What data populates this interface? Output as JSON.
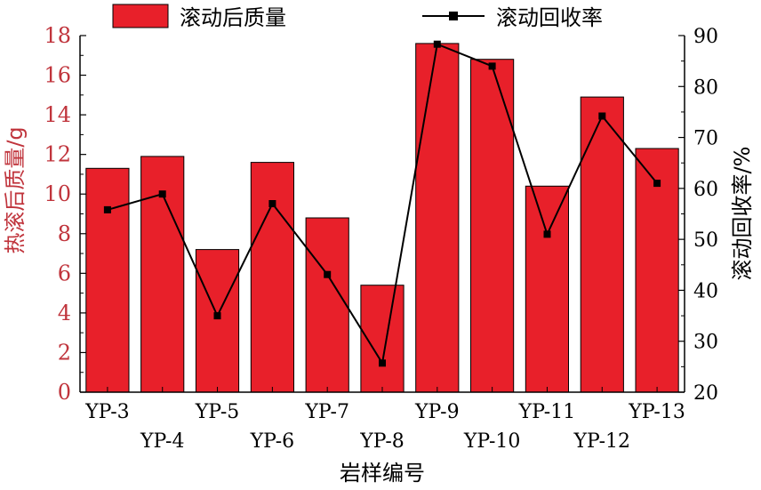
{
  "chart_data": {
    "type": "bar",
    "categories": [
      "YP-3",
      "YP-4",
      "YP-5",
      "YP-6",
      "YP-7",
      "YP-8",
      "YP-9",
      "YP-10",
      "YP-11",
      "YP-12",
      "YP-13"
    ],
    "series": [
      {
        "name": "滚动后质量",
        "type": "bar",
        "axis": "left",
        "color": "#e8202a",
        "values": [
          11.3,
          11.9,
          7.2,
          11.6,
          8.8,
          5.4,
          17.6,
          16.8,
          10.4,
          14.9,
          12.3
        ]
      },
      {
        "name": "滚动回收率",
        "type": "line",
        "axis": "right",
        "color": "#000000",
        "values": [
          55.8,
          58.9,
          35.0,
          57.0,
          43.1,
          25.7,
          88.3,
          84.0,
          51.0,
          74.2,
          61.0
        ]
      }
    ],
    "ylabel_left": "热滚后质量/g",
    "ylabel_right": "滚动回收率/%",
    "xlabel": "岩样编号",
    "ylim_left": [
      0,
      18
    ],
    "ylim_right": [
      20,
      90
    ],
    "yticks_left": [
      "0",
      "2",
      "4",
      "6",
      "8",
      "10",
      "12",
      "14",
      "16",
      "18"
    ],
    "yticks_right": [
      "20",
      "30",
      "40",
      "50",
      "60",
      "70",
      "80",
      "90"
    ],
    "legend_position": "top",
    "grid": false,
    "left_axis_color": "#c0343c"
  }
}
